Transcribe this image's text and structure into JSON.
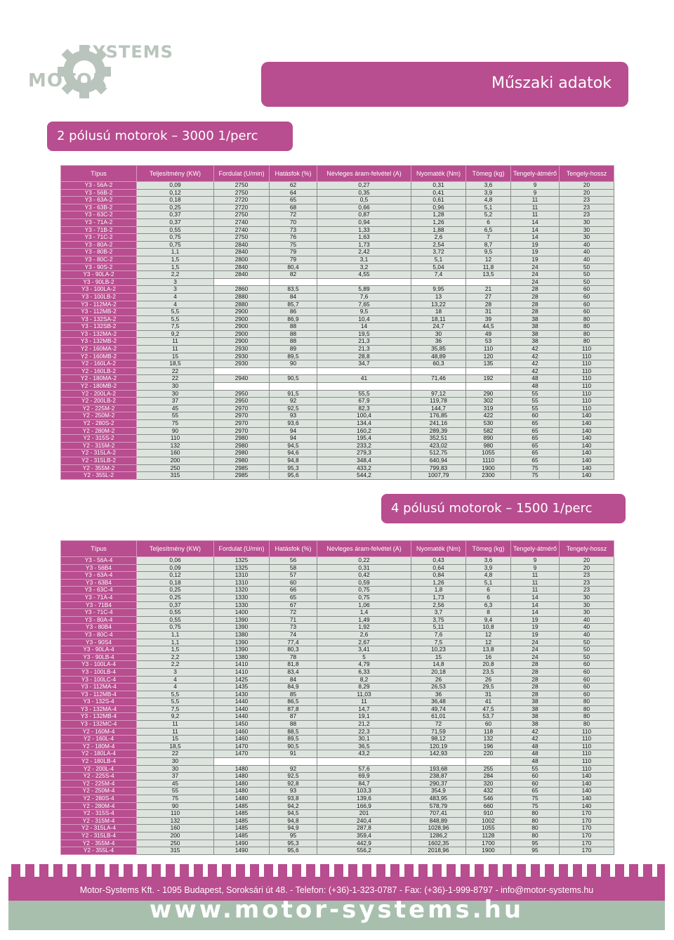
{
  "logo": {
    "line1": "SYSTEMS",
    "line2": "MOTOR",
    "icon": "gear-icon"
  },
  "title": "Műszaki adatok",
  "headers": [
    "Típus",
    "Teljesítmény (KW)",
    "Fordulat (U/min)",
    "Hatásfok (%)",
    "Névleges áram-felvétel (A)",
    "Nyomaték (Nm)",
    "Tömeg (kg)",
    "Tengely-átmérő",
    "Tengely-hossz"
  ],
  "section1": {
    "title": "2 pólusú motorok – 3000 1/perc",
    "rows": [
      [
        "Y3 - 56A-2",
        "0,09",
        "2750",
        "62",
        "0,27",
        "0,31",
        "3,6",
        "9",
        "20"
      ],
      [
        "Y3 - 56B-2",
        "0,12",
        "2750",
        "64",
        "0,35",
        "0,41",
        "3,9",
        "9",
        "20"
      ],
      [
        "Y3 - 63A-2",
        "0,18",
        "2720",
        "65",
        "0,5",
        "0,61",
        "4,8",
        "11",
        "23"
      ],
      [
        "Y3 - 63B-2",
        "0,25",
        "2720",
        "68",
        "0,66",
        "0,96",
        "5,1",
        "11",
        "23"
      ],
      [
        "Y3 - 63C-2",
        "0,37",
        "2750",
        "72",
        "0,87",
        "1,28",
        "5,2",
        "11",
        "23"
      ],
      [
        "Y3 - 71A-2",
        "0,37",
        "2740",
        "70",
        "0,94",
        "1,26",
        "6",
        "14",
        "30"
      ],
      [
        "Y3 - 71B-2",
        "0,55",
        "2740",
        "73",
        "1,33",
        "1,88",
        "6,5",
        "14",
        "30"
      ],
      [
        "Y3 - 71C-2",
        "0,75",
        "2750",
        "76",
        "1,63",
        "2,6",
        "7",
        "14",
        "30"
      ],
      [
        "Y3 - 80A-2",
        "0,75",
        "2840",
        "75",
        "1,73",
        "2,54",
        "8,7",
        "19",
        "40"
      ],
      [
        "Y3 - 80B-2",
        "1,1",
        "2840",
        "79",
        "2,42",
        "3,72",
        "9,5",
        "19",
        "40"
      ],
      [
        "Y3 - 80C-2",
        "1,5",
        "2800",
        "79",
        "3,1",
        "5,1",
        "12",
        "19",
        "40"
      ],
      [
        "Y3 - 90S-2",
        "1,5",
        "2840",
        "80,4",
        "3,2",
        "5,04",
        "11,8",
        "24",
        "50"
      ],
      [
        "Y3 - 90LA-2",
        "2,2",
        "2840",
        "82",
        "4,55",
        "7,4",
        "13,5",
        "24",
        "50"
      ],
      [
        "Y3 - 90LB-2",
        "3",
        "",
        "",
        "",
        "",
        "",
        "24",
        "50"
      ],
      [
        "Y3 - 100LA-2",
        "3",
        "2860",
        "83,5",
        "5,89",
        "9,95",
        "21",
        "28",
        "60"
      ],
      [
        "Y3 - 100LB-2",
        "4",
        "2880",
        "84",
        "7,6",
        "13",
        "27",
        "28",
        "60"
      ],
      [
        "Y3 - 112MA-2",
        "4",
        "2880",
        "85,7",
        "7,65",
        "13,22",
        "28",
        "28",
        "60"
      ],
      [
        "Y3 - 112MB-2",
        "5,5",
        "2900",
        "86",
        "9,5",
        "18",
        "31",
        "28",
        "60"
      ],
      [
        "Y3 - 132SA-2",
        "5,5",
        "2900",
        "86,9",
        "10,4",
        "18,11",
        "39",
        "38",
        "80"
      ],
      [
        "Y3 - 132SB-2",
        "7,5",
        "2900",
        "88",
        "14",
        "24,7",
        "44,5",
        "38",
        "80"
      ],
      [
        "Y3 - 132MA-2",
        "9,2",
        "2900",
        "88",
        "19,5",
        "30",
        "49",
        "38",
        "80"
      ],
      [
        "Y3 - 132MB-2",
        "11",
        "2900",
        "88",
        "21,3",
        "36",
        "53",
        "38",
        "80"
      ],
      [
        "Y2 - 160MA-2",
        "11",
        "2930",
        "89",
        "21,3",
        "35,85",
        "110",
        "42",
        "110"
      ],
      [
        "Y2 - 160MB-2",
        "15",
        "2930",
        "89,5",
        "28,8",
        "48,89",
        "120",
        "42",
        "110"
      ],
      [
        "Y2 - 160LA-2",
        "18,5",
        "2930",
        "90",
        "34,7",
        "60,3",
        "135",
        "42",
        "110"
      ],
      [
        "Y2 - 160LB-2",
        "22",
        "",
        "",
        "",
        "",
        "",
        "42",
        "110"
      ],
      [
        "Y2 - 180MA-2",
        "22",
        "2940",
        "90,5",
        "41",
        "71,46",
        "192",
        "48",
        "110"
      ],
      [
        "Y2 - 180MB-2",
        "30",
        "",
        "",
        "",
        "",
        "",
        "48",
        "110"
      ],
      [
        "Y2 - 200LA-2",
        "30",
        "2950",
        "91,5",
        "55,5",
        "97,12",
        "290",
        "55",
        "110"
      ],
      [
        "Y2 - 200LB-2",
        "37",
        "2950",
        "92",
        "67,9",
        "119,78",
        "302",
        "55",
        "110"
      ],
      [
        "Y2 - 225M-2",
        "45",
        "2970",
        "92,5",
        "82,3",
        "144,7",
        "319",
        "55",
        "110"
      ],
      [
        "Y2 - 250M-2",
        "55",
        "2970",
        "93",
        "100,4",
        "176,85",
        "422",
        "60",
        "140"
      ],
      [
        "Y2 - 280S-2",
        "75",
        "2970",
        "93,6",
        "134,4",
        "241,16",
        "530",
        "65",
        "140"
      ],
      [
        "Y2 - 280M-2",
        "90",
        "2970",
        "94",
        "160,2",
        "289,39",
        "582",
        "65",
        "140"
      ],
      [
        "Y2 - 315S-2",
        "110",
        "2980",
        "94",
        "195,4",
        "352,51",
        "890",
        "65",
        "140"
      ],
      [
        "Y2 - 315M-2",
        "132",
        "2980",
        "94,5",
        "233,2",
        "423,02",
        "980",
        "65",
        "140"
      ],
      [
        "Y2 - 315LA-2",
        "160",
        "2980",
        "94,6",
        "279,3",
        "512,75",
        "1055",
        "65",
        "140"
      ],
      [
        "Y2 - 315LB-2",
        "200",
        "2980",
        "94,8",
        "348,4",
        "640,94",
        "1110",
        "65",
        "140"
      ],
      [
        "Y2 - 355M-2",
        "250",
        "2985",
        "95,3",
        "433,2",
        "799,83",
        "1900",
        "75",
        "140"
      ],
      [
        "Y2 - 355L-2",
        "315",
        "2985",
        "95,6",
        "544,2",
        "1007,79",
        "2300",
        "75",
        "140"
      ]
    ]
  },
  "section2": {
    "title": "4 pólusú motorok – 1500 1/perc",
    "rows": [
      [
        "Y3 - 56A-4",
        "0,06",
        "1325",
        "56",
        "0,22",
        "0,43",
        "3,6",
        "9",
        "20"
      ],
      [
        "Y3 - 56B4",
        "0,09",
        "1325",
        "58",
        "0,31",
        "0,64",
        "3,9",
        "9",
        "20"
      ],
      [
        "Y3 - 63A-4",
        "0,12",
        "1310",
        "57",
        "0,42",
        "0,84",
        "4,8",
        "11",
        "23"
      ],
      [
        "Y3 - 63B4",
        "0,18",
        "1310",
        "60",
        "0,59",
        "1,26",
        "5,1",
        "11",
        "23"
      ],
      [
        "Y3 - 63C-4",
        "0,25",
        "1320",
        "66",
        "0,75",
        "1,8",
        "6",
        "11",
        "23"
      ],
      [
        "Y3 - 71A-4",
        "0,25",
        "1330",
        "65",
        "0,75",
        "1,73",
        "6",
        "14",
        "30"
      ],
      [
        "Y3 - 71B4",
        "0,37",
        "1330",
        "67",
        "1,06",
        "2,56",
        "6,3",
        "14",
        "30"
      ],
      [
        "Y3 - 71C-4",
        "0,55",
        "1400",
        "72",
        "1,4",
        "3,7",
        "8",
        "14",
        "30"
      ],
      [
        "Y3 - 80A-4",
        "0,55",
        "1390",
        "71",
        "1,49",
        "3,75",
        "9,4",
        "19",
        "40"
      ],
      [
        "Y3 - 80B4",
        "0,75",
        "1390",
        "73",
        "1,92",
        "5,11",
        "10,8",
        "19",
        "40"
      ],
      [
        "Y3 - 80C-4",
        "1,1",
        "1380",
        "74",
        "2,6",
        "7,6",
        "12",
        "19",
        "40"
      ],
      [
        "Y3 - 90S4",
        "1,1",
        "1390",
        "77,4",
        "2,67",
        "7,5",
        "12",
        "24",
        "50"
      ],
      [
        "Y3 - 90LA-4",
        "1,5",
        "1390",
        "80,3",
        "3,41",
        "10,23",
        "13,8",
        "24",
        "50"
      ],
      [
        "Y3 - 90LB-4",
        "2,2",
        "1380",
        "78",
        "5",
        "15",
        "16",
        "24",
        "50"
      ],
      [
        "Y3 - 100LA-4",
        "2,2",
        "1410",
        "81,8",
        "4,79",
        "14,8",
        "20,8",
        "28",
        "60"
      ],
      [
        "Y3 - 100LB-4",
        "3",
        "1410",
        "83,4",
        "6,33",
        "20,18",
        "23,5",
        "28",
        "60"
      ],
      [
        "Y3 - 100LC-4",
        "4",
        "1425",
        "84",
        "8,2",
        "26",
        "26",
        "28",
        "60"
      ],
      [
        "Y3 - 112MA-4",
        "4",
        "1435",
        "84,9",
        "8,29",
        "26,53",
        "29,5",
        "28",
        "60"
      ],
      [
        "Y3 - 112MB-4",
        "5,5",
        "1430",
        "85",
        "11,03",
        "36",
        "31",
        "28",
        "60"
      ],
      [
        "Y3 - 132S-4",
        "5,5",
        "1440",
        "86,5",
        "11",
        "36,48",
        "41",
        "38",
        "80"
      ],
      [
        "Y3 - 132MA-4",
        "7,5",
        "1440",
        "87,8",
        "14,7",
        "49,74",
        "47,5",
        "38",
        "80"
      ],
      [
        "Y3 - 132MB-4",
        "9,2",
        "1440",
        "87",
        "19,1",
        "61,01",
        "53,7",
        "38",
        "80"
      ],
      [
        "Y3 - 132MC-4",
        "11",
        "1450",
        "88",
        "21,2",
        "72",
        "60",
        "38",
        "80"
      ],
      [
        "Y2 - 160M-4",
        "11",
        "1460",
        "88,5",
        "22,3",
        "71,59",
        "118",
        "42",
        "110"
      ],
      [
        "Y2 - 160L-4",
        "15",
        "1460",
        "89,5",
        "30,1",
        "98,12",
        "132",
        "42",
        "110"
      ],
      [
        "Y2 - 180M-4",
        "18,5",
        "1470",
        "90,5",
        "36,5",
        "120,19",
        "196",
        "48",
        "110"
      ],
      [
        "Y2 - 180LA-4",
        "22",
        "1470",
        "91",
        "43,2",
        "142,93",
        "220",
        "48",
        "110"
      ],
      [
        "Y2 - 180LB-4",
        "30",
        "",
        "",
        "",
        "",
        "",
        "48",
        "110"
      ],
      [
        "Y2 - 200L-4",
        "30",
        "1480",
        "92",
        "57,6",
        "193,68",
        "255",
        "55",
        "110"
      ],
      [
        "Y2 - 225S-4",
        "37",
        "1480",
        "92,5",
        "69,9",
        "238,87",
        "284",
        "60",
        "140"
      ],
      [
        "Y2 - 225M-4",
        "45",
        "1480",
        "92,8",
        "84,7",
        "290,37",
        "320",
        "60",
        "140"
      ],
      [
        "Y2 - 250M-4",
        "55",
        "1480",
        "93",
        "103,3",
        "354,9",
        "432",
        "65",
        "140"
      ],
      [
        "Y2 - 280S-4",
        "75",
        "1480",
        "93,8",
        "139,6",
        "483,95",
        "546",
        "75",
        "140"
      ],
      [
        "Y2 - 280M-4",
        "90",
        "1485",
        "94,2",
        "166,9",
        "578,79",
        "660",
        "75",
        "140"
      ],
      [
        "Y2 - 315S-4",
        "110",
        "1485",
        "94,5",
        "201",
        "707,41",
        "910",
        "80",
        "170"
      ],
      [
        "Y2 - 315M-4",
        "132",
        "1485",
        "94,8",
        "240,4",
        "848,89",
        "1002",
        "80",
        "170"
      ],
      [
        "Y2 - 315LA-4",
        "160",
        "1485",
        "94,9",
        "287,8",
        "1028,96",
        "1055",
        "80",
        "170"
      ],
      [
        "Y2 - 315LB-4",
        "200",
        "1485",
        "95",
        "359,4",
        "1286,2",
        "1128",
        "80",
        "170"
      ],
      [
        "Y2 - 355M-4",
        "250",
        "1490",
        "95,3",
        "442,9",
        "1602,35",
        "1700",
        "95",
        "170"
      ],
      [
        "Y2 - 355L-4",
        "315",
        "1490",
        "95,6",
        "556,2",
        "2018,96",
        "1900",
        "95",
        "170"
      ]
    ]
  },
  "footer": {
    "contact": "Motor-Systems Kft. - 1095 Budapest, Soroksári út 48. - Telefon: (+36)-1-323-0787 - Fax: (+36)-1-999-8797 - info@motor-systems.hu",
    "website": "www.motor-systems.hu"
  },
  "colors": {
    "accent": "#b84d8f",
    "cell": "#dde4de",
    "footer_green": "#a8bfae"
  }
}
